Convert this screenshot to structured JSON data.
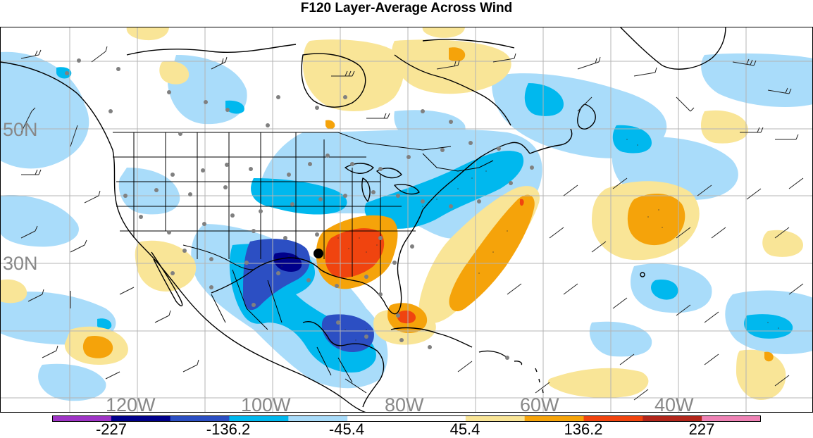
{
  "title": "F120 Layer-Average Across Wind",
  "map": {
    "lat_labels": [
      "50N",
      "30N"
    ],
    "lon_labels": [
      "120W",
      "100W",
      "80W",
      "60W",
      "40W"
    ],
    "label_color": "#888888",
    "grid_color": "#b4b4b4",
    "coastline_color": "#000000",
    "station_marker_color": "#808080",
    "highlight_marker_color": "#000000"
  },
  "colorbar": {
    "colors": [
      "#9f35c6",
      "#00008b",
      "#2c4fc3",
      "#00b8ee",
      "#a9dcfa",
      "#ffffff",
      "#ffffff",
      "#f9e597",
      "#f5a30a",
      "#f0440f",
      "#b2261b",
      "#ee82b5"
    ],
    "tick_labels": [
      "-227",
      "-136.2",
      "-45.4",
      "45.4",
      "136.2",
      "227"
    ]
  }
}
